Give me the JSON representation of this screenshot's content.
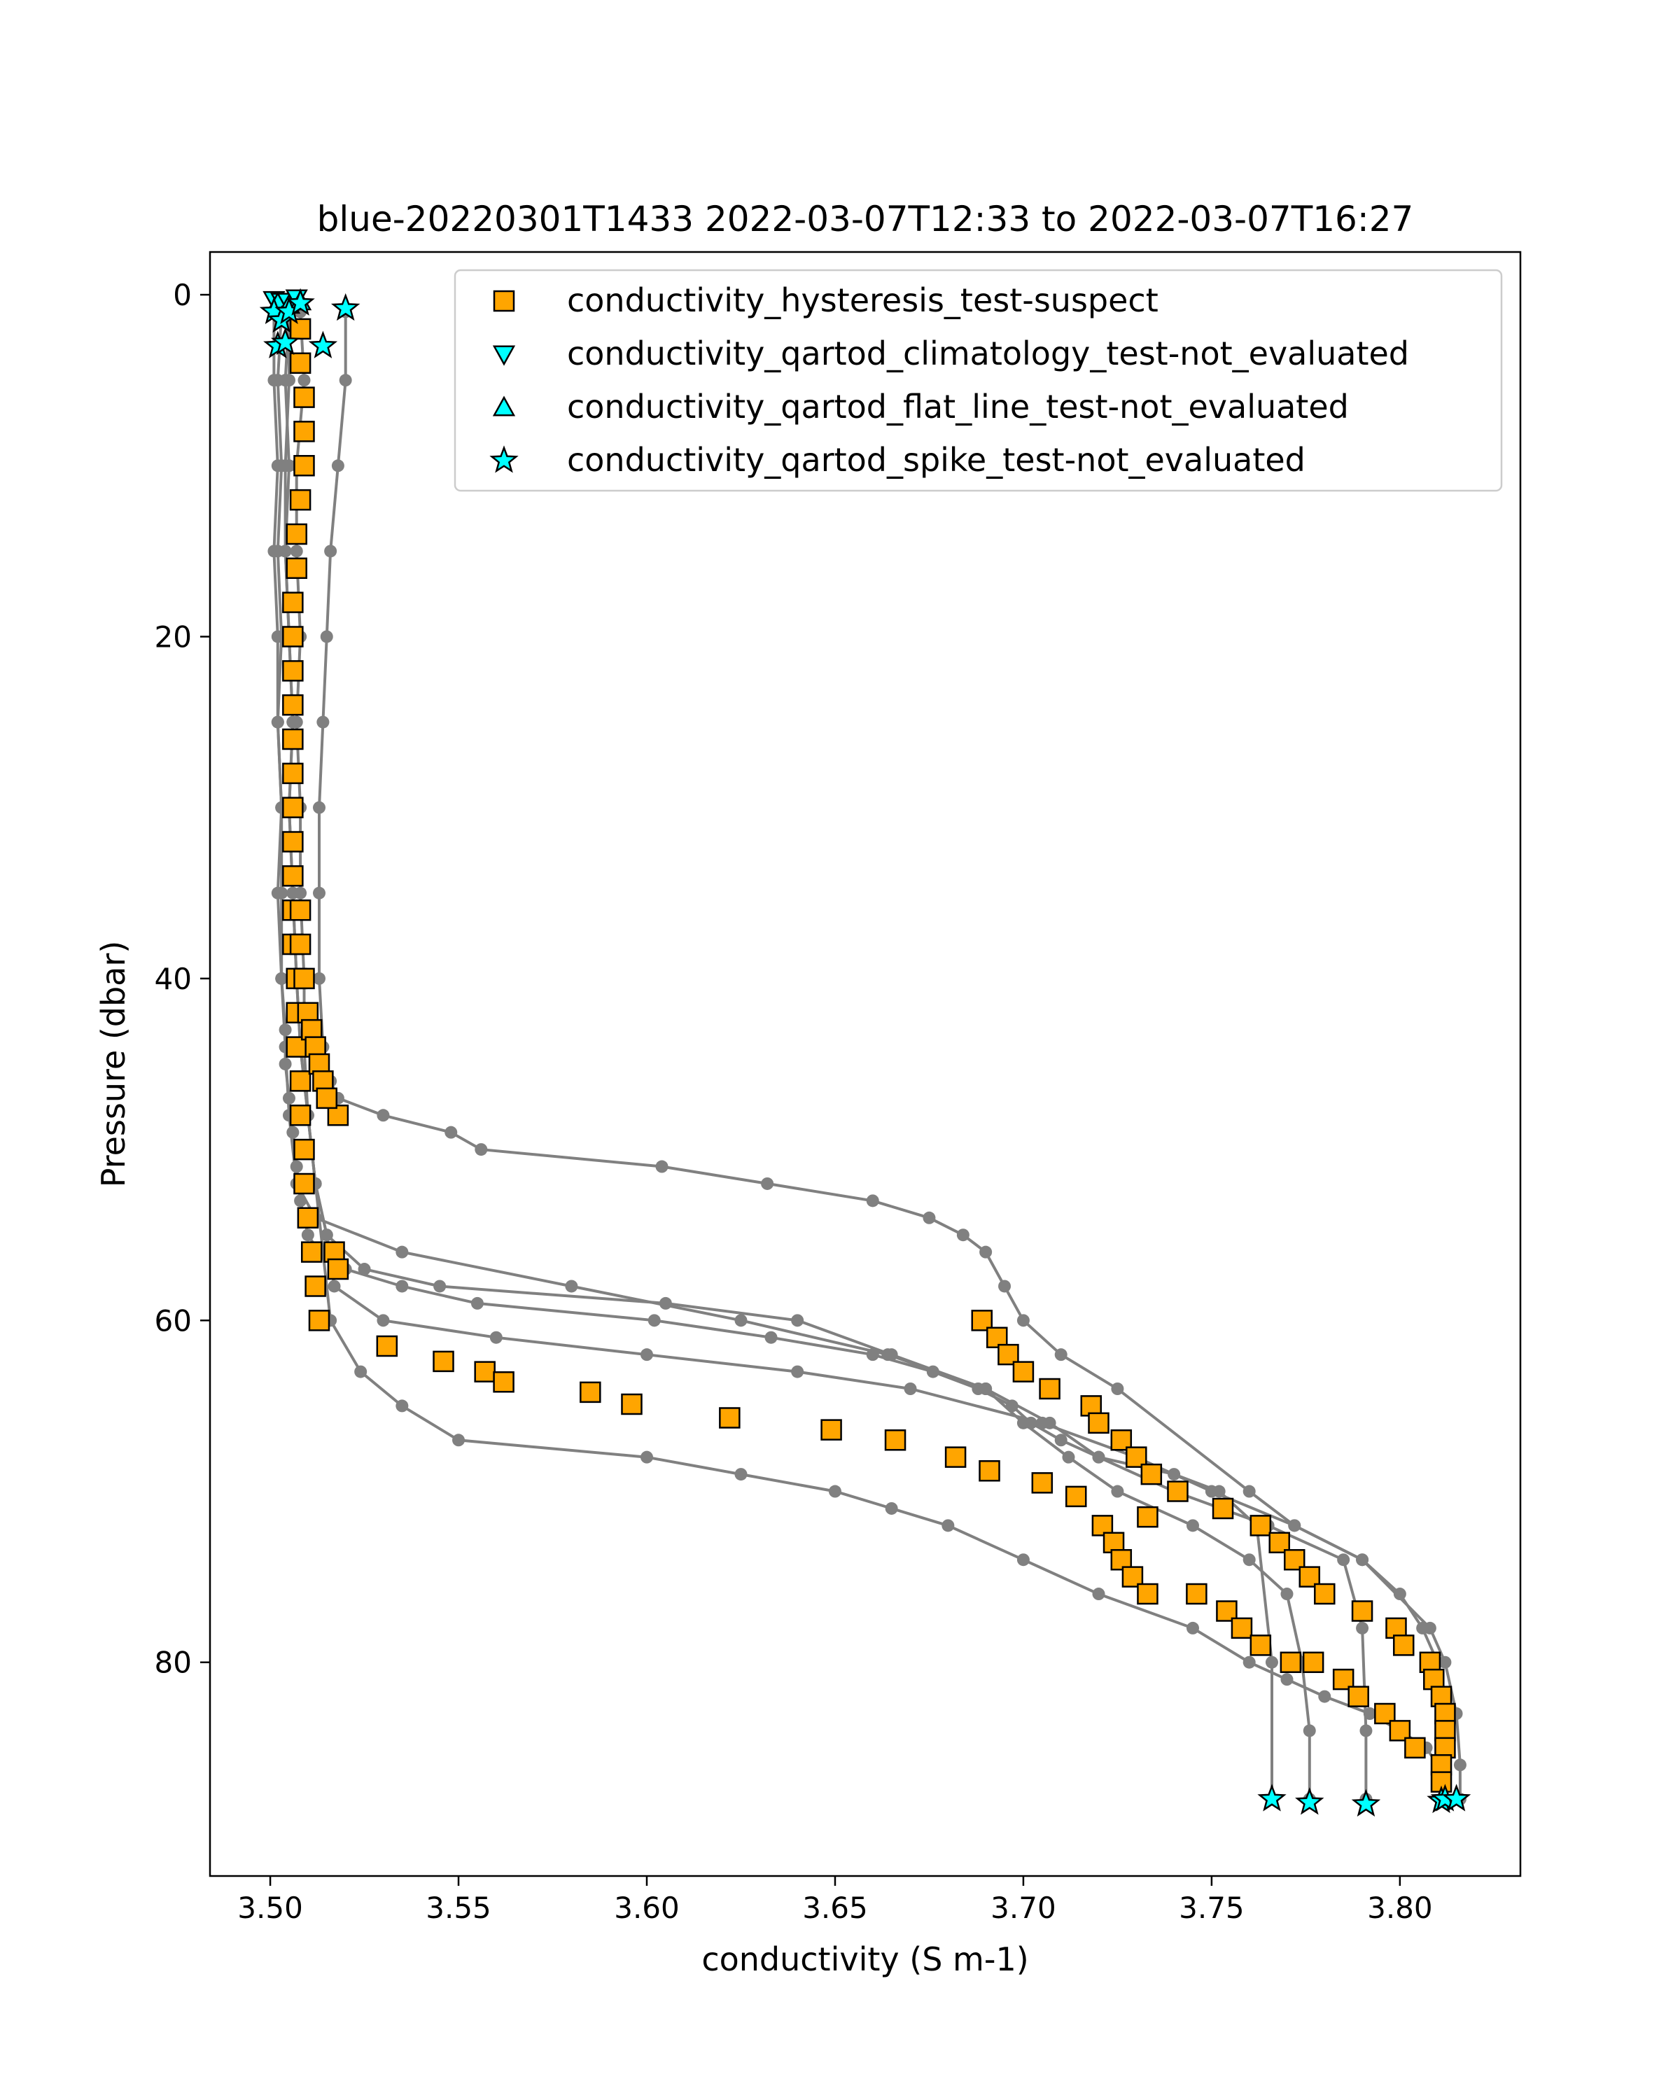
{
  "chart_data": {
    "type": "scatter",
    "title": "blue-20220301T1433 2022-03-07T12:33 to 2022-03-07T16:27",
    "xlabel": "conductivity (S m-1)",
    "ylabel": "Pressure (dbar)",
    "xlim": [
      3.484,
      3.832
    ],
    "ylim": [
      92.5,
      -2.5
    ],
    "y_inverted": true,
    "grid": false,
    "legend_position": "upper right",
    "xticks": [
      3.5,
      3.55,
      3.6,
      3.65,
      3.7,
      3.75,
      3.8
    ],
    "xtick_labels": [
      "3.50",
      "3.55",
      "3.60",
      "3.65",
      "3.70",
      "3.75",
      "3.80"
    ],
    "yticks": [
      0,
      20,
      40,
      60,
      80
    ],
    "ytick_labels": [
      "0",
      "20",
      "40",
      "60",
      "80"
    ],
    "profile_color": "#808080",
    "profiles": [
      {
        "x": [
          3.503,
          3.502,
          3.503,
          3.502,
          3.503,
          3.502,
          3.503,
          3.502,
          3.503,
          3.504,
          3.504,
          3.505,
          3.506,
          3.507,
          3.508,
          3.51,
          3.513,
          3.52,
          3.535,
          3.555,
          3.602,
          3.633,
          3.66,
          3.676,
          3.688,
          3.697,
          3.702,
          3.71,
          3.72,
          3.74,
          3.752,
          3.762,
          3.766,
          3.766
        ],
        "y": [
          1,
          5,
          10,
          15,
          20,
          25,
          30,
          35,
          40,
          43,
          45,
          47,
          49,
          51,
          53,
          55,
          56,
          57,
          58,
          59,
          60,
          61,
          62,
          63,
          64,
          65,
          66,
          67,
          68,
          69,
          70,
          72,
          80,
          88
        ]
      },
      {
        "x": [
          3.505,
          3.505,
          3.504,
          3.504,
          3.505,
          3.506,
          3.505,
          3.506,
          3.507,
          3.508,
          3.51,
          3.512,
          3.515,
          3.525,
          3.545,
          3.605,
          3.64,
          3.665,
          3.69,
          3.7,
          3.712,
          3.725,
          3.745,
          3.76,
          3.77,
          3.774,
          3.776,
          3.776
        ],
        "y": [
          1,
          5,
          10,
          15,
          20,
          25,
          30,
          35,
          40,
          44,
          48,
          52,
          55,
          57,
          58,
          59,
          60,
          62,
          64,
          66,
          68,
          70,
          72,
          74,
          76,
          80,
          84,
          88
        ]
      },
      {
        "x": [
          3.501,
          3.501,
          3.502,
          3.501,
          3.502,
          3.502,
          3.503,
          3.503,
          3.503,
          3.504,
          3.505,
          3.507,
          3.512,
          3.535,
          3.58,
          3.625,
          3.664,
          3.69,
          3.707,
          3.72,
          3.74,
          3.765,
          3.785,
          3.79,
          3.791,
          3.791
        ],
        "y": [
          1,
          5,
          10,
          15,
          20,
          25,
          30,
          35,
          40,
          44,
          48,
          52,
          54,
          56,
          58,
          60,
          62,
          64,
          66,
          68,
          70,
          72,
          74,
          78,
          84,
          88
        ]
      },
      {
        "x": [
          3.508,
          3.509,
          3.507,
          3.507,
          3.508,
          3.507,
          3.508,
          3.508,
          3.509,
          3.509,
          3.51,
          3.512,
          3.515,
          3.517,
          3.53,
          3.56,
          3.6,
          3.64,
          3.67,
          3.705,
          3.73,
          3.75,
          3.772,
          3.79,
          3.8,
          3.806,
          3.81,
          3.811,
          3.812,
          3.812
        ],
        "y": [
          1,
          5,
          10,
          15,
          20,
          25,
          30,
          35,
          40,
          44,
          48,
          52,
          55,
          58,
          60,
          61,
          62,
          63,
          64,
          66,
          68,
          70,
          72,
          74,
          76,
          78,
          80,
          83,
          86,
          88
        ]
      },
      {
        "x": [
          3.52,
          3.52,
          3.518,
          3.516,
          3.515,
          3.514,
          3.513,
          3.513,
          3.513,
          3.514,
          3.516,
          3.518,
          3.53,
          3.548,
          3.556,
          3.604,
          3.632,
          3.66,
          3.675,
          3.684,
          3.69,
          3.695,
          3.7,
          3.71,
          3.725,
          3.76,
          3.772,
          3.79,
          3.808,
          3.812,
          3.815,
          3.816,
          3.816
        ],
        "y": [
          1,
          5,
          10,
          15,
          20,
          25,
          30,
          35,
          40,
          44,
          46,
          47,
          48,
          49,
          50,
          51,
          52,
          53,
          54,
          55,
          56,
          58,
          60,
          62,
          64,
          70,
          72,
          74,
          78,
          80,
          83,
          86,
          88
        ]
      },
      {
        "x": [
          3.505,
          3.504,
          3.505,
          3.504,
          3.505,
          3.506,
          3.505,
          3.506,
          3.507,
          3.508,
          3.51,
          3.512,
          3.514,
          3.516,
          3.524,
          3.535,
          3.55,
          3.6,
          3.625,
          3.65,
          3.665,
          3.68,
          3.7,
          3.72,
          3.745,
          3.76,
          3.77,
          3.78,
          3.792,
          3.8,
          3.807,
          3.81,
          3.811
        ],
        "y": [
          1,
          5,
          10,
          15,
          20,
          25,
          30,
          35,
          40,
          44,
          48,
          52,
          56,
          60,
          63,
          65,
          67,
          68,
          69,
          70,
          71,
          72,
          74,
          76,
          78,
          80,
          81,
          82,
          83,
          84,
          85,
          86,
          88
        ]
      }
    ],
    "series": [
      {
        "name": "conductivity_hysteresis_test-suspect",
        "marker": "square",
        "color": "#FFA500",
        "x": [
          3.508,
          3.508,
          3.509,
          3.509,
          3.509,
          3.508,
          3.507,
          3.507,
          3.506,
          3.506,
          3.506,
          3.506,
          3.506,
          3.506,
          3.506,
          3.506,
          3.506,
          3.506,
          3.506,
          3.507,
          3.507,
          3.507,
          3.508,
          3.508,
          3.509,
          3.509,
          3.51,
          3.511,
          3.512,
          3.513,
          3.518,
          3.508,
          3.508,
          3.509,
          3.51,
          3.511,
          3.512,
          3.513,
          3.514,
          3.515,
          3.517,
          3.518,
          3.531,
          3.546,
          3.557,
          3.562,
          3.585,
          3.596,
          3.622,
          3.649,
          3.666,
          3.682,
          3.691,
          3.705,
          3.714,
          3.733,
          3.689,
          3.693,
          3.696,
          3.7,
          3.707,
          3.718,
          3.72,
          3.726,
          3.73,
          3.734,
          3.741,
          3.753,
          3.763,
          3.768,
          3.772,
          3.776,
          3.78,
          3.79,
          3.799,
          3.801,
          3.808,
          3.809,
          3.811,
          3.812,
          3.812,
          3.812,
          3.721,
          3.724,
          3.726,
          3.729,
          3.733,
          3.746,
          3.754,
          3.758,
          3.763,
          3.771,
          3.777,
          3.785,
          3.789,
          3.796,
          3.8,
          3.804,
          3.811,
          3.811
        ],
        "y": [
          2,
          4,
          6,
          8,
          10,
          12,
          14,
          16,
          18,
          20,
          22,
          24,
          26,
          28,
          30,
          32,
          34,
          36,
          38,
          40,
          42,
          44,
          46,
          48,
          50,
          52,
          54,
          56,
          58,
          60,
          48,
          36,
          38,
          40,
          42,
          43,
          44,
          45,
          46,
          47,
          56,
          57,
          61.5,
          62.4,
          63,
          63.6,
          64.2,
          64.9,
          65.7,
          66.4,
          67,
          68,
          68.8,
          69.5,
          70.3,
          71.5,
          60,
          61,
          62,
          63,
          64,
          65,
          66,
          67,
          68,
          69,
          70,
          71,
          72,
          73,
          74,
          75,
          76,
          77,
          78,
          79,
          80,
          81,
          82,
          83,
          84,
          85,
          72,
          73,
          74,
          75,
          76,
          76,
          77,
          78,
          79,
          80,
          80,
          81,
          82,
          83,
          84,
          85,
          86,
          87
        ]
      },
      {
        "name": "conductivity_qartod_climatology_test-not_evaluated",
        "marker": "triangle_down",
        "color": "#00FFFF",
        "x": [
          3.501,
          3.503,
          3.507
        ],
        "y": [
          0.3,
          0.4,
          0.2
        ]
      },
      {
        "name": "conductivity_qartod_flat_line_test-not_evaluated",
        "marker": "triangle_up",
        "color": "#00FFFF",
        "x": [
          3.502,
          3.505,
          3.508
        ],
        "y": [
          0.5,
          0.6,
          0.4
        ]
      },
      {
        "name": "conductivity_qartod_spike_test-not_evaluated",
        "marker": "star",
        "color": "#00FFFF",
        "x": [
          3.501,
          3.502,
          3.503,
          3.504,
          3.505,
          3.508,
          3.514,
          3.52,
          3.766,
          3.776,
          3.791,
          3.811,
          3.812,
          3.815
        ],
        "y": [
          1.0,
          3.0,
          1.5,
          2.8,
          1.0,
          0.5,
          3.0,
          0.8,
          88.0,
          88.2,
          88.3,
          88.1,
          88.0,
          88.0
        ]
      }
    ]
  }
}
